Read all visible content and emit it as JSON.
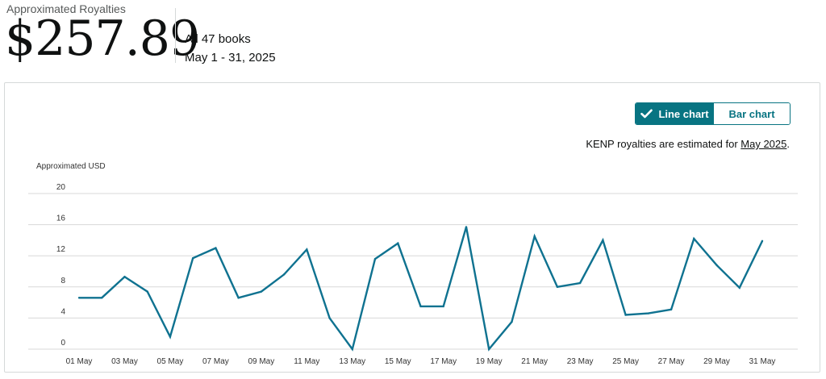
{
  "header": {
    "label": "Approximated Royalties",
    "amount": "$257.89",
    "books": "All 47 books",
    "date_range": "May 1 - 31, 2025"
  },
  "toggle": {
    "line_label": "Line chart",
    "bar_label": "Bar chart",
    "active": "line",
    "check_icon": "check-icon"
  },
  "note": {
    "prefix": "KENP royalties are estimated for ",
    "link": "May 2025",
    "suffix": "."
  },
  "colors": {
    "accent": "#087482",
    "line": "#0f7290",
    "grid": "#d8d8d8"
  },
  "chart_data": {
    "type": "line",
    "ylabel": "Approximated USD",
    "ylim": [
      0,
      20
    ],
    "yticks": [
      0,
      4,
      8,
      12,
      16,
      20
    ],
    "grid": true,
    "x": [
      "01 May",
      "02 May",
      "03 May",
      "04 May",
      "05 May",
      "06 May",
      "07 May",
      "08 May",
      "09 May",
      "10 May",
      "11 May",
      "12 May",
      "13 May",
      "14 May",
      "15 May",
      "16 May",
      "17 May",
      "18 May",
      "19 May",
      "20 May",
      "21 May",
      "22 May",
      "23 May",
      "24 May",
      "25 May",
      "26 May",
      "27 May",
      "28 May",
      "29 May",
      "30 May",
      "31 May"
    ],
    "xtick_labels": [
      "01 May",
      "03 May",
      "05 May",
      "07 May",
      "09 May",
      "11 May",
      "13 May",
      "15 May",
      "17 May",
      "19 May",
      "21 May",
      "23 May",
      "25 May",
      "27 May",
      "29 May",
      "31 May"
    ],
    "series": [
      {
        "values": [
          6.6,
          6.6,
          9.3,
          7.4,
          1.6,
          11.7,
          13.0,
          6.6,
          7.4,
          9.6,
          12.8,
          4.0,
          0.0,
          11.6,
          13.6,
          5.5,
          5.5,
          15.7,
          0.0,
          3.5,
          14.5,
          8.0,
          8.5,
          14.0,
          4.4,
          4.6,
          5.1,
          14.2,
          10.8,
          7.9,
          13.9
        ]
      }
    ]
  }
}
